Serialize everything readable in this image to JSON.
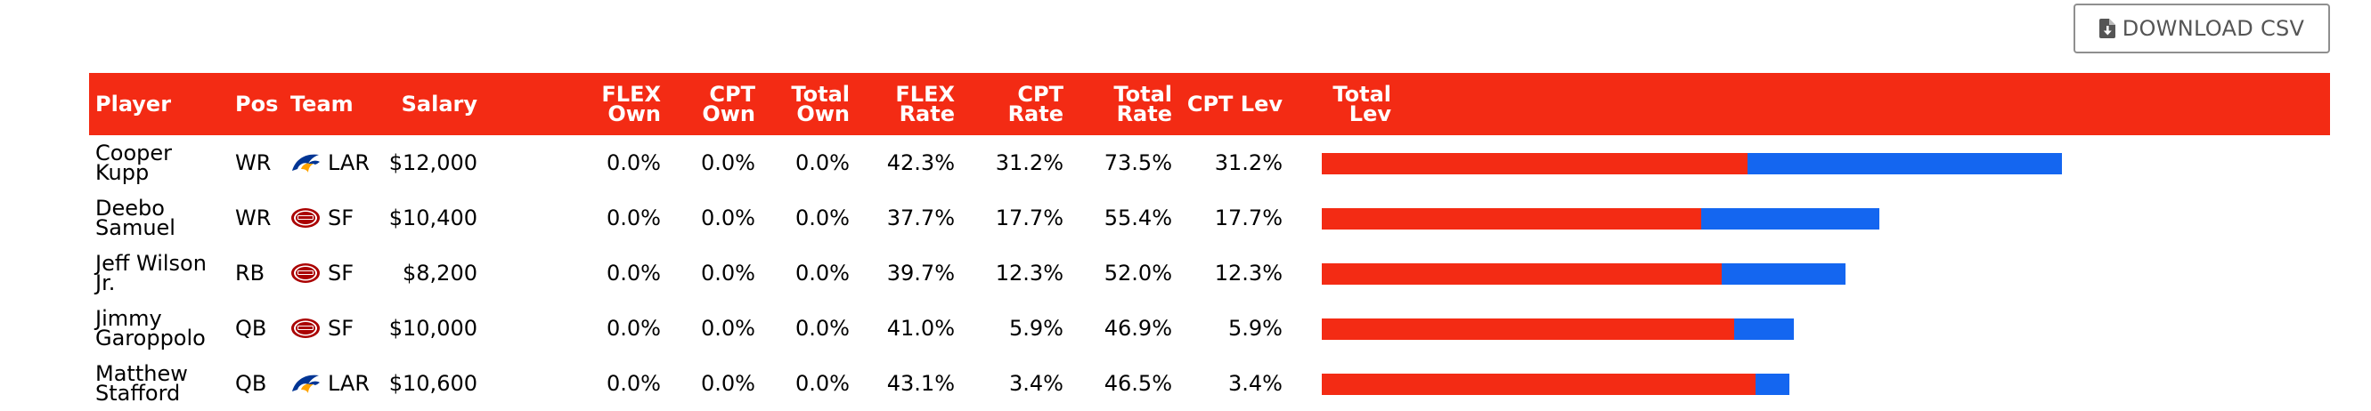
{
  "download_label": "DOWNLOAD CSV",
  "columns": {
    "player": "Player",
    "pos": "Pos",
    "team": "Team",
    "salary": "Salary",
    "flex_own": [
      "FLEX",
      "Own"
    ],
    "cpt_own": [
      "CPT",
      "Own"
    ],
    "total_own": [
      "Total",
      "Own"
    ],
    "flex_rate": [
      "FLEX",
      "Rate"
    ],
    "cpt_rate": [
      "CPT",
      "Rate"
    ],
    "total_rate": [
      "Total",
      "Rate"
    ],
    "cpt_lev": "CPT Lev",
    "total_lev": [
      "Total",
      "Lev"
    ]
  },
  "colors": {
    "header_bg": "#f32b14",
    "bar_flex": "#f32b14",
    "bar_cpt": "#1466f0"
  },
  "rows": [
    {
      "player": "Cooper Kupp",
      "pos": "WR",
      "team": "LAR",
      "team_logo": "rams-logo-icon",
      "salary": "$12,000",
      "flex_own": "0.0%",
      "cpt_own": "0.0%",
      "total_own": "0.0%",
      "flex_rate": "42.3%",
      "cpt_rate": "31.2%",
      "total_rate": "73.5%",
      "cpt_lev": "31.2%",
      "total_lev": "73.5%",
      "flex_val": 42.3,
      "cpt_val": 31.2
    },
    {
      "player": "Deebo Samuel",
      "pos": "WR",
      "team": "SF",
      "team_logo": "49ers-logo-icon",
      "salary": "$10,400",
      "flex_own": "0.0%",
      "cpt_own": "0.0%",
      "total_own": "0.0%",
      "flex_rate": "37.7%",
      "cpt_rate": "17.7%",
      "total_rate": "55.4%",
      "cpt_lev": "17.7%",
      "total_lev": "55.4%",
      "flex_val": 37.7,
      "cpt_val": 17.7
    },
    {
      "player": "Jeff Wilson Jr.",
      "pos": "RB",
      "team": "SF",
      "team_logo": "49ers-logo-icon",
      "salary": "$8,200",
      "flex_own": "0.0%",
      "cpt_own": "0.0%",
      "total_own": "0.0%",
      "flex_rate": "39.7%",
      "cpt_rate": "12.3%",
      "total_rate": "52.0%",
      "cpt_lev": "12.3%",
      "total_lev": "52.0%",
      "flex_val": 39.7,
      "cpt_val": 12.3
    },
    {
      "player": "Jimmy Garoppolo",
      "pos": "QB",
      "team": "SF",
      "team_logo": "49ers-logo-icon",
      "salary": "$10,000",
      "flex_own": "0.0%",
      "cpt_own": "0.0%",
      "total_own": "0.0%",
      "flex_rate": "41.0%",
      "cpt_rate": "5.9%",
      "total_rate": "46.9%",
      "cpt_lev": "5.9%",
      "total_lev": "46.9%",
      "flex_val": 41.0,
      "cpt_val": 5.9
    },
    {
      "player": "Matthew Stafford",
      "pos": "QB",
      "team": "LAR",
      "team_logo": "rams-logo-icon",
      "salary": "$10,600",
      "flex_own": "0.0%",
      "cpt_own": "0.0%",
      "total_own": "0.0%",
      "flex_rate": "43.1%",
      "cpt_rate": "3.4%",
      "total_rate": "46.5%",
      "cpt_lev": "3.4%",
      "total_lev": "46.5%",
      "flex_val": 43.1,
      "cpt_val": 3.4
    }
  ]
}
